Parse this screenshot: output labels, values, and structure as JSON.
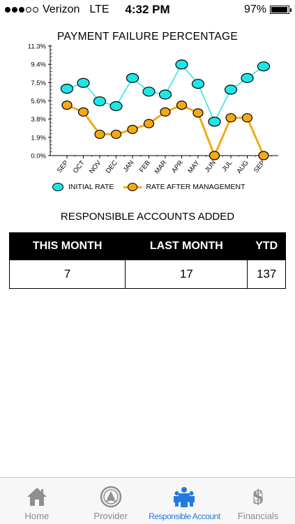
{
  "status_bar": {
    "signal_dots_filled": 3,
    "signal_dots_total": 5,
    "carrier": "Verizon",
    "network": "LTE",
    "time": "4:32 PM",
    "battery_percent": "97%",
    "battery_level": 0.97
  },
  "chart_data": {
    "type": "line",
    "title": "PAYMENT FAILURE PERCENTAGE",
    "categories": [
      "SEP",
      "OCT",
      "NOV",
      "DEC",
      "JAN",
      "FEB",
      "MAR",
      "APR",
      "MAY",
      "JUN",
      "JUL",
      "AUG",
      "SEP"
    ],
    "y_ticks": [
      "0.0%",
      "1.9%",
      "3.8%",
      "5.6%",
      "7.5%",
      "9.4%",
      "11.3%"
    ],
    "ylim": [
      0,
      11.3
    ],
    "grid": false,
    "legend_position": "bottom",
    "series": [
      {
        "name": "INITIAL RATE",
        "color": "#1ee6e6",
        "values": [
          6.9,
          7.5,
          5.6,
          5.1,
          8.0,
          6.6,
          6.3,
          9.4,
          7.4,
          3.5,
          6.8,
          8.0,
          9.2
        ]
      },
      {
        "name": "RATE AFTER MANAGEMENT",
        "color": "#f5a816",
        "values": [
          5.2,
          4.5,
          2.2,
          2.2,
          2.7,
          3.3,
          4.5,
          5.2,
          4.4,
          0.0,
          3.9,
          3.9,
          0.0
        ]
      }
    ]
  },
  "responsible_accounts": {
    "title": "RESPONSIBLE ACCOUNTS ADDED",
    "headers": [
      "THIS MONTH",
      "LAST MONTH",
      "YTD"
    ],
    "values": [
      "7",
      "17",
      "137"
    ]
  },
  "tab_bar": {
    "active_index": 2,
    "active_color": "#1f7be0",
    "items": [
      {
        "label": "Home",
        "icon": "home-icon"
      },
      {
        "label": "Provider",
        "icon": "provider-seal-icon"
      },
      {
        "label": "Responsible Account",
        "icon": "people-icon"
      },
      {
        "label": "Financials",
        "icon": "dollar-document-icon"
      }
    ]
  }
}
